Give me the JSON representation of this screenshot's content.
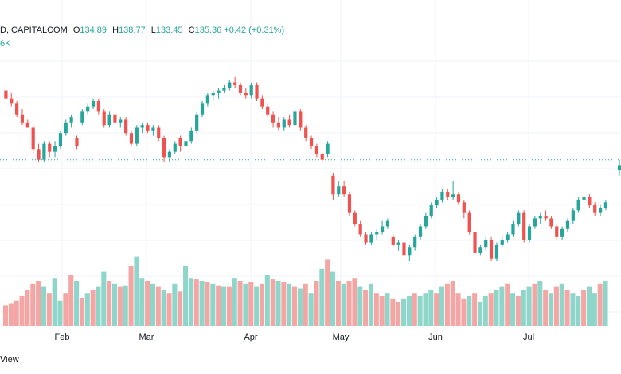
{
  "legend": {
    "source": "D, CAPITALCOM",
    "open_label": "O",
    "open": "134.89",
    "high_label": "H",
    "high": "138.77",
    "low_label": "L",
    "low": "133.45",
    "close_label": "C",
    "close": "135.36",
    "change": "+0.42 (+0.31%)"
  },
  "volume_legend": "6K",
  "footer": "View",
  "colors": {
    "up": "#26a69a",
    "down": "#ef5350",
    "vol_up": "#8fd6ca",
    "vol_down": "#f4a6a5",
    "grid": "#f0f3fa",
    "dotted": "#26a69a"
  },
  "chart_data": {
    "type": "candlestick",
    "months": [
      "Feb",
      "Mar",
      "Apr",
      "May",
      "Jun",
      "Jul"
    ],
    "y_range": [
      0,
      100
    ],
    "price_line": 58,
    "candles": [
      {
        "o": 84,
        "h": 86,
        "l": 80,
        "c": 81
      },
      {
        "o": 81,
        "h": 83,
        "l": 78,
        "c": 79
      },
      {
        "o": 79,
        "h": 80,
        "l": 74,
        "c": 75
      },
      {
        "o": 75,
        "h": 77,
        "l": 71,
        "c": 72
      },
      {
        "o": 72,
        "h": 73,
        "l": 70,
        "c": 70
      },
      {
        "o": 70,
        "h": 71,
        "l": 60,
        "c": 62
      },
      {
        "o": 62,
        "h": 64,
        "l": 57,
        "c": 58
      },
      {
        "o": 58,
        "h": 65,
        "l": 57,
        "c": 64
      },
      {
        "o": 64,
        "h": 65,
        "l": 59,
        "c": 61
      },
      {
        "o": 61,
        "h": 65,
        "l": 59,
        "c": 63
      },
      {
        "o": 63,
        "h": 69,
        "l": 62,
        "c": 68
      },
      {
        "o": 68,
        "h": 73,
        "l": 67,
        "c": 72
      },
      {
        "o": 72,
        "h": 75,
        "l": 70,
        "c": 74
      },
      {
        "o": 66,
        "h": 67,
        "l": 62,
        "c": 63
      },
      {
        "o": 72,
        "h": 77,
        "l": 71,
        "c": 76
      },
      {
        "o": 76,
        "h": 79,
        "l": 75,
        "c": 78
      },
      {
        "o": 78,
        "h": 81,
        "l": 77,
        "c": 80
      },
      {
        "o": 80,
        "h": 81,
        "l": 75,
        "c": 76
      },
      {
        "o": 76,
        "h": 77,
        "l": 70,
        "c": 71
      },
      {
        "o": 71,
        "h": 76,
        "l": 70,
        "c": 75
      },
      {
        "o": 75,
        "h": 76,
        "l": 71,
        "c": 72
      },
      {
        "o": 72,
        "h": 74,
        "l": 70,
        "c": 73
      },
      {
        "o": 73,
        "h": 74,
        "l": 67,
        "c": 68
      },
      {
        "o": 68,
        "h": 69,
        "l": 63,
        "c": 64
      },
      {
        "o": 64,
        "h": 71,
        "l": 63,
        "c": 70
      },
      {
        "o": 70,
        "h": 72,
        "l": 68,
        "c": 71
      },
      {
        "o": 71,
        "h": 72,
        "l": 68,
        "c": 69
      },
      {
        "o": 69,
        "h": 71,
        "l": 67,
        "c": 70
      },
      {
        "o": 70,
        "h": 71,
        "l": 65,
        "c": 66
      },
      {
        "o": 66,
        "h": 67,
        "l": 57,
        "c": 59
      },
      {
        "o": 59,
        "h": 62,
        "l": 57,
        "c": 61
      },
      {
        "o": 61,
        "h": 65,
        "l": 60,
        "c": 64
      },
      {
        "o": 66,
        "h": 67,
        "l": 61,
        "c": 63
      },
      {
        "o": 63,
        "h": 66,
        "l": 62,
        "c": 65
      },
      {
        "o": 65,
        "h": 70,
        "l": 64,
        "c": 69
      },
      {
        "o": 69,
        "h": 76,
        "l": 68,
        "c": 75
      },
      {
        "o": 75,
        "h": 80,
        "l": 74,
        "c": 79
      },
      {
        "o": 79,
        "h": 83,
        "l": 78,
        "c": 82
      },
      {
        "o": 82,
        "h": 84,
        "l": 80,
        "c": 83
      },
      {
        "o": 83,
        "h": 85,
        "l": 81,
        "c": 84
      },
      {
        "o": 84,
        "h": 86,
        "l": 83,
        "c": 85
      },
      {
        "o": 85,
        "h": 88,
        "l": 84,
        "c": 87
      },
      {
        "o": 87,
        "h": 89,
        "l": 85,
        "c": 86
      },
      {
        "o": 86,
        "h": 87,
        "l": 82,
        "c": 83
      },
      {
        "o": 83,
        "h": 85,
        "l": 81,
        "c": 82
      },
      {
        "o": 82,
        "h": 87,
        "l": 81,
        "c": 86
      },
      {
        "o": 86,
        "h": 87,
        "l": 80,
        "c": 81
      },
      {
        "o": 81,
        "h": 82,
        "l": 77,
        "c": 78
      },
      {
        "o": 78,
        "h": 79,
        "l": 74,
        "c": 75
      },
      {
        "o": 75,
        "h": 76,
        "l": 70,
        "c": 72
      },
      {
        "o": 72,
        "h": 74,
        "l": 69,
        "c": 70
      },
      {
        "o": 70,
        "h": 74,
        "l": 69,
        "c": 73
      },
      {
        "o": 73,
        "h": 75,
        "l": 70,
        "c": 71
      },
      {
        "o": 71,
        "h": 77,
        "l": 70,
        "c": 76
      },
      {
        "o": 76,
        "h": 77,
        "l": 69,
        "c": 70
      },
      {
        "o": 70,
        "h": 71,
        "l": 65,
        "c": 66
      },
      {
        "o": 66,
        "h": 67,
        "l": 62,
        "c": 63
      },
      {
        "o": 63,
        "h": 64,
        "l": 59,
        "c": 60
      },
      {
        "o": 60,
        "h": 61,
        "l": 57,
        "c": 58
      },
      {
        "o": 60,
        "h": 65,
        "l": 59,
        "c": 64
      },
      {
        "o": 52,
        "h": 53,
        "l": 43,
        "c": 45
      },
      {
        "o": 45,
        "h": 50,
        "l": 44,
        "c": 48
      },
      {
        "o": 48,
        "h": 50,
        "l": 44,
        "c": 45
      },
      {
        "o": 45,
        "h": 46,
        "l": 37,
        "c": 38
      },
      {
        "o": 38,
        "h": 39,
        "l": 33,
        "c": 34
      },
      {
        "o": 34,
        "h": 35,
        "l": 29,
        "c": 30
      },
      {
        "o": 30,
        "h": 31,
        "l": 26,
        "c": 27
      },
      {
        "o": 27,
        "h": 31,
        "l": 26,
        "c": 30
      },
      {
        "o": 30,
        "h": 32,
        "l": 28,
        "c": 31
      },
      {
        "o": 31,
        "h": 35,
        "l": 30,
        "c": 33
      },
      {
        "o": 33,
        "h": 36,
        "l": 32,
        "c": 35
      },
      {
        "o": 29,
        "h": 30,
        "l": 25,
        "c": 26
      },
      {
        "o": 26,
        "h": 28,
        "l": 24,
        "c": 27
      },
      {
        "o": 27,
        "h": 28,
        "l": 21,
        "c": 22
      },
      {
        "o": 22,
        "h": 26,
        "l": 20,
        "c": 25
      },
      {
        "o": 25,
        "h": 30,
        "l": 24,
        "c": 29
      },
      {
        "o": 29,
        "h": 34,
        "l": 28,
        "c": 33
      },
      {
        "o": 33,
        "h": 38,
        "l": 32,
        "c": 37
      },
      {
        "o": 37,
        "h": 42,
        "l": 36,
        "c": 41
      },
      {
        "o": 41,
        "h": 44,
        "l": 40,
        "c": 43
      },
      {
        "o": 43,
        "h": 47,
        "l": 42,
        "c": 46
      },
      {
        "o": 46,
        "h": 47,
        "l": 43,
        "c": 44
      },
      {
        "o": 44,
        "h": 50,
        "l": 43,
        "c": 45
      },
      {
        "o": 45,
        "h": 46,
        "l": 41,
        "c": 42
      },
      {
        "o": 42,
        "h": 43,
        "l": 36,
        "c": 38
      },
      {
        "o": 38,
        "h": 39,
        "l": 30,
        "c": 31
      },
      {
        "o": 31,
        "h": 32,
        "l": 22,
        "c": 23
      },
      {
        "o": 23,
        "h": 26,
        "l": 22,
        "c": 25
      },
      {
        "o": 25,
        "h": 29,
        "l": 24,
        "c": 28
      },
      {
        "o": 28,
        "h": 29,
        "l": 20,
        "c": 21
      },
      {
        "o": 21,
        "h": 27,
        "l": 20,
        "c": 26
      },
      {
        "o": 26,
        "h": 29,
        "l": 25,
        "c": 28
      },
      {
        "o": 28,
        "h": 31,
        "l": 27,
        "c": 30
      },
      {
        "o": 30,
        "h": 35,
        "l": 29,
        "c": 34
      },
      {
        "o": 34,
        "h": 39,
        "l": 33,
        "c": 38
      },
      {
        "o": 38,
        "h": 39,
        "l": 27,
        "c": 28
      },
      {
        "o": 28,
        "h": 34,
        "l": 27,
        "c": 33
      },
      {
        "o": 33,
        "h": 37,
        "l": 32,
        "c": 36
      },
      {
        "o": 36,
        "h": 38,
        "l": 34,
        "c": 37
      },
      {
        "o": 37,
        "h": 39,
        "l": 35,
        "c": 36
      },
      {
        "o": 36,
        "h": 37,
        "l": 32,
        "c": 33
      },
      {
        "o": 33,
        "h": 34,
        "l": 28,
        "c": 29
      },
      {
        "o": 29,
        "h": 33,
        "l": 28,
        "c": 32
      },
      {
        "o": 32,
        "h": 36,
        "l": 31,
        "c": 35
      },
      {
        "o": 35,
        "h": 40,
        "l": 34,
        "c": 39
      },
      {
        "o": 39,
        "h": 44,
        "l": 38,
        "c": 43
      },
      {
        "o": 43,
        "h": 45,
        "l": 41,
        "c": 44
      },
      {
        "o": 44,
        "h": 45,
        "l": 40,
        "c": 41
      },
      {
        "o": 41,
        "h": 42,
        "l": 37,
        "c": 38
      },
      {
        "o": 38,
        "h": 41,
        "l": 37,
        "c": 40
      },
      {
        "o": 40,
        "h": 43,
        "l": 39,
        "c": 42
      },
      {
        "o": 54,
        "h": 58,
        "l": 52,
        "c": 56
      }
    ],
    "volumes": [
      {
        "v": 14,
        "u": 0
      },
      {
        "v": 15,
        "u": 0
      },
      {
        "v": 17,
        "u": 0
      },
      {
        "v": 20,
        "u": 0
      },
      {
        "v": 24,
        "u": 0
      },
      {
        "v": 28,
        "u": 0
      },
      {
        "v": 30,
        "u": 0
      },
      {
        "v": 26,
        "u": 1
      },
      {
        "v": 22,
        "u": 0
      },
      {
        "v": 32,
        "u": 1
      },
      {
        "v": 17,
        "u": 1
      },
      {
        "v": 22,
        "u": 0
      },
      {
        "v": 34,
        "u": 0
      },
      {
        "v": 30,
        "u": 1
      },
      {
        "v": 19,
        "u": 0
      },
      {
        "v": 22,
        "u": 1
      },
      {
        "v": 24,
        "u": 0
      },
      {
        "v": 26,
        "u": 1
      },
      {
        "v": 36,
        "u": 1
      },
      {
        "v": 30,
        "u": 0
      },
      {
        "v": 28,
        "u": 1
      },
      {
        "v": 26,
        "u": 0
      },
      {
        "v": 27,
        "u": 1
      },
      {
        "v": 40,
        "u": 0
      },
      {
        "v": 46,
        "u": 1
      },
      {
        "v": 32,
        "u": 1
      },
      {
        "v": 30,
        "u": 0
      },
      {
        "v": 28,
        "u": 1
      },
      {
        "v": 26,
        "u": 0
      },
      {
        "v": 24,
        "u": 1
      },
      {
        "v": 22,
        "u": 0
      },
      {
        "v": 28,
        "u": 1
      },
      {
        "v": 23,
        "u": 0
      },
      {
        "v": 40,
        "u": 1
      },
      {
        "v": 32,
        "u": 1
      },
      {
        "v": 31,
        "u": 0
      },
      {
        "v": 30,
        "u": 1
      },
      {
        "v": 29,
        "u": 0
      },
      {
        "v": 28,
        "u": 1
      },
      {
        "v": 27,
        "u": 0
      },
      {
        "v": 26,
        "u": 1
      },
      {
        "v": 26,
        "u": 0
      },
      {
        "v": 32,
        "u": 1
      },
      {
        "v": 30,
        "u": 0
      },
      {
        "v": 28,
        "u": 1
      },
      {
        "v": 29,
        "u": 0
      },
      {
        "v": 26,
        "u": 1
      },
      {
        "v": 28,
        "u": 0
      },
      {
        "v": 34,
        "u": 1
      },
      {
        "v": 31,
        "u": 0
      },
      {
        "v": 30,
        "u": 1
      },
      {
        "v": 29,
        "u": 0
      },
      {
        "v": 28,
        "u": 1
      },
      {
        "v": 26,
        "u": 0
      },
      {
        "v": 25,
        "u": 1
      },
      {
        "v": 28,
        "u": 0
      },
      {
        "v": 22,
        "u": 1
      },
      {
        "v": 30,
        "u": 0
      },
      {
        "v": 38,
        "u": 1
      },
      {
        "v": 44,
        "u": 0
      },
      {
        "v": 36,
        "u": 1
      },
      {
        "v": 30,
        "u": 0
      },
      {
        "v": 28,
        "u": 1
      },
      {
        "v": 30,
        "u": 0
      },
      {
        "v": 32,
        "u": 0
      },
      {
        "v": 26,
        "u": 1
      },
      {
        "v": 24,
        "u": 0
      },
      {
        "v": 28,
        "u": 1
      },
      {
        "v": 22,
        "u": 0
      },
      {
        "v": 20,
        "u": 0
      },
      {
        "v": 22,
        "u": 1
      },
      {
        "v": 18,
        "u": 0
      },
      {
        "v": 16,
        "u": 0
      },
      {
        "v": 18,
        "u": 1
      },
      {
        "v": 20,
        "u": 1
      },
      {
        "v": 22,
        "u": 0
      },
      {
        "v": 20,
        "u": 1
      },
      {
        "v": 22,
        "u": 1
      },
      {
        "v": 24,
        "u": 1
      },
      {
        "v": 22,
        "u": 0
      },
      {
        "v": 26,
        "u": 1
      },
      {
        "v": 28,
        "u": 0
      },
      {
        "v": 30,
        "u": 0
      },
      {
        "v": 22,
        "u": 0
      },
      {
        "v": 18,
        "u": 0
      },
      {
        "v": 20,
        "u": 1
      },
      {
        "v": 22,
        "u": 0
      },
      {
        "v": 16,
        "u": 1
      },
      {
        "v": 20,
        "u": 1
      },
      {
        "v": 22,
        "u": 0
      },
      {
        "v": 24,
        "u": 1
      },
      {
        "v": 26,
        "u": 1
      },
      {
        "v": 28,
        "u": 0
      },
      {
        "v": 22,
        "u": 1
      },
      {
        "v": 20,
        "u": 0
      },
      {
        "v": 24,
        "u": 1
      },
      {
        "v": 26,
        "u": 1
      },
      {
        "v": 28,
        "u": 0
      },
      {
        "v": 30,
        "u": 1
      },
      {
        "v": 24,
        "u": 0
      },
      {
        "v": 22,
        "u": 1
      },
      {
        "v": 26,
        "u": 0
      },
      {
        "v": 28,
        "u": 1
      },
      {
        "v": 24,
        "u": 0
      },
      {
        "v": 22,
        "u": 1
      },
      {
        "v": 20,
        "u": 1
      },
      {
        "v": 24,
        "u": 0
      },
      {
        "v": 26,
        "u": 1
      },
      {
        "v": 22,
        "u": 1
      },
      {
        "v": 28,
        "u": 0
      },
      {
        "v": 30,
        "u": 1
      }
    ]
  }
}
